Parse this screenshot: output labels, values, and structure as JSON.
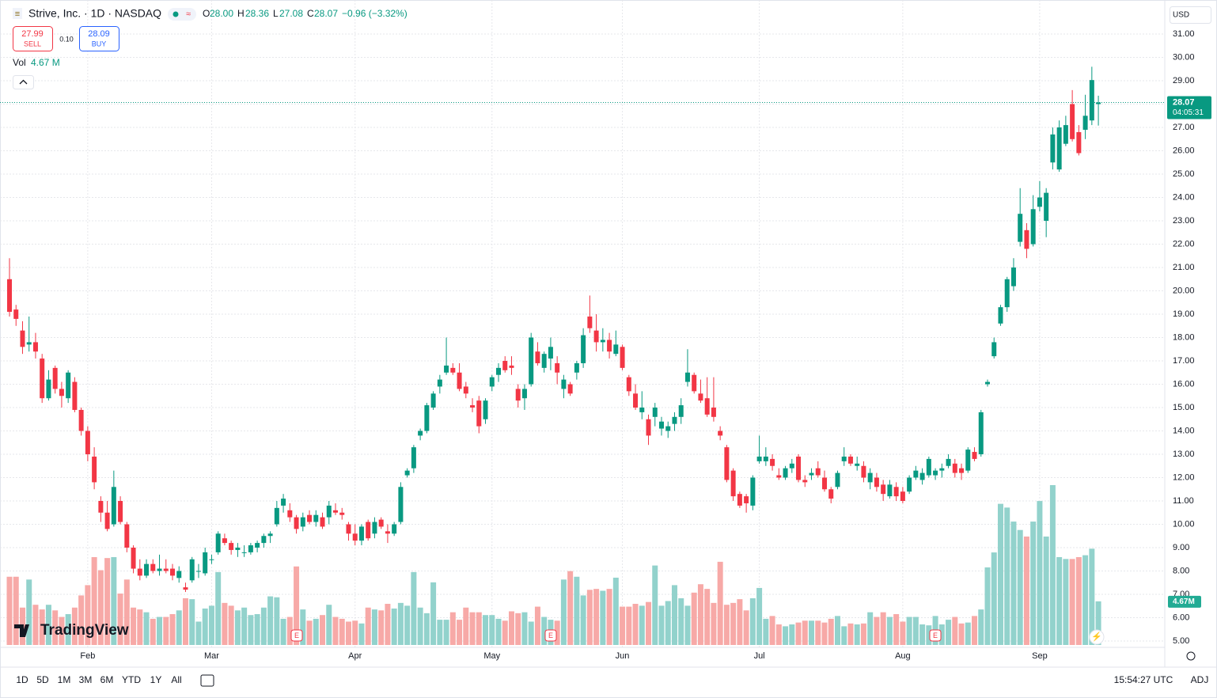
{
  "header": {
    "symbol": "Strive, Inc. · 1D · NASDAQ",
    "o_label": "O",
    "h_label": "H",
    "l_label": "L",
    "c_label": "C",
    "open": "28.00",
    "high": "28.36",
    "low": "27.08",
    "close": "28.07",
    "change": "−0.96 (−3.32%)",
    "sell_price": "27.99",
    "sell": "SELL",
    "spread": "0.10",
    "buy_price": "28.09",
    "buy": "BUY",
    "vol_label": "Vol",
    "vol_value": "4.67 M"
  },
  "chart_data": {
    "type": "candlestick",
    "currency": "USD",
    "countdown": "04:05:31",
    "volume_label": "4.67M",
    "earnings_label": "E",
    "categories": [
      null,
      null,
      null,
      null,
      null,
      null,
      null,
      null,
      null,
      null,
      null,
      null,
      "Feb",
      null,
      null,
      null,
      null,
      null,
      null,
      null,
      null,
      null,
      null,
      null,
      null,
      null,
      null,
      null,
      null,
      null,
      null,
      "Mar",
      null,
      null,
      null,
      null,
      null,
      null,
      null,
      null,
      null,
      null,
      null,
      null,
      null,
      null,
      null,
      null,
      null,
      null,
      null,
      null,
      null,
      "Apr",
      null,
      null,
      null,
      null,
      null,
      null,
      null,
      null,
      null,
      null,
      null,
      null,
      null,
      null,
      null,
      null,
      null,
      null,
      null,
      null,
      "May",
      null,
      null,
      null,
      null,
      null,
      null,
      null,
      null,
      null,
      null,
      null,
      null,
      null,
      null,
      null,
      null,
      null,
      null,
      null,
      "Jun",
      null,
      null,
      null,
      null,
      null,
      null,
      null,
      null,
      null,
      null,
      null,
      null,
      null,
      null,
      null,
      null,
      null,
      null,
      null,
      null,
      "Jul",
      null,
      null,
      null,
      null,
      null,
      null,
      null,
      null,
      null,
      null,
      null,
      null,
      null,
      null,
      null,
      null,
      null,
      null,
      null,
      null,
      null,
      "Aug",
      null,
      null,
      null,
      null,
      null,
      null,
      null,
      null,
      null,
      null,
      null,
      null,
      null,
      null,
      null,
      null,
      null,
      null,
      null,
      null,
      "Sep",
      null,
      null,
      null,
      null,
      null,
      null,
      null,
      null,
      null
    ],
    "open": [
      20.5,
      19.2,
      18.3,
      17.7,
      17.8,
      17.1,
      15.4,
      16.7,
      15.8,
      15.4,
      16.1,
      14.9,
      14.0,
      12.9,
      11.0,
      10.5,
      10.0,
      11.0,
      10.0,
      9.0,
      8.1,
      7.8,
      8.3,
      8.0,
      8.1,
      8.1,
      7.7,
      7.3,
      7.6,
      8.0,
      7.9,
      8.5,
      8.8,
      9.4,
      9.2,
      8.9,
      8.8,
      8.8,
      9.0,
      9.2,
      9.5,
      10.0,
      10.8,
      10.6,
      10.3,
      9.9,
      10.4,
      10.1,
      10.3,
      10.3,
      10.6,
      10.5,
      10.0,
      9.6,
      9.3,
      10.1,
      9.6,
      10.2,
      9.7,
      9.6,
      10.1,
      12.1,
      12.4,
      13.8,
      14.0,
      15.0,
      15.9,
      16.5,
      16.7,
      16.5,
      15.9,
      15.1,
      15.3,
      14.5,
      15.9,
      16.4,
      17.0,
      16.8,
      15.8,
      15.4,
      16.0,
      17.4,
      16.7,
      17.1,
      16.9,
      15.8,
      16.0,
      16.5,
      16.9,
      18.9,
      18.3,
      17.8,
      17.9,
      17.3,
      17.6,
      16.3,
      15.6,
      14.8,
      14.5,
      14.6,
      14.1,
      14.0,
      14.3,
      14.6,
      16.1,
      16.4,
      15.6,
      15.4,
      15.0,
      14.0,
      13.3,
      12.3,
      11.3,
      11.2,
      10.8,
      12.7,
      12.7,
      12.8,
      12.1,
      12.0,
      12.4,
      12.9,
      11.9,
      12.1,
      12.4,
      12.0,
      11.5,
      11.6,
      12.7,
      12.9,
      12.5,
      12.5,
      11.8,
      12.0,
      11.7,
      11.2,
      11.6,
      11.4,
      11.4,
      12.0,
      11.9,
      12.1,
      12.1,
      12.3,
      12.5,
      12.6,
      12.4,
      12.3,
      13.1,
      13.0,
      16.0,
      17.2,
      18.6,
      19.3,
      20.2,
      22.1,
      22.6,
      22.0,
      23.6,
      23.0,
      25.5,
      25.2,
      26.3,
      28.0,
      26.8,
      26.9,
      27.3,
      28.0
    ],
    "high": [
      21.4,
      19.4,
      18.7,
      18.9,
      18.2,
      17.3,
      16.6,
      16.8,
      16.1,
      16.6,
      16.3,
      15.0,
      14.2,
      13.3,
      11.2,
      11.0,
      12.3,
      11.2,
      10.1,
      9.1,
      8.5,
      8.5,
      8.5,
      8.7,
      8.5,
      8.3,
      8.2,
      7.5,
      8.6,
      8.3,
      9.0,
      8.7,
      9.7,
      9.6,
      9.3,
      9.2,
      9.1,
      9.2,
      9.3,
      9.6,
      9.7,
      11.0,
      11.3,
      10.9,
      10.4,
      10.5,
      10.6,
      10.6,
      10.5,
      11.0,
      10.9,
      10.7,
      10.1,
      10.0,
      10.0,
      10.2,
      10.3,
      10.3,
      10.0,
      10.1,
      11.8,
      12.4,
      13.4,
      14.1,
      15.2,
      15.7,
      16.4,
      18.0,
      16.9,
      16.9,
      16.1,
      15.4,
      15.5,
      15.4,
      16.4,
      16.9,
      17.2,
      17.2,
      16.0,
      16.0,
      18.2,
      17.8,
      17.4,
      18.0,
      17.2,
      16.4,
      16.1,
      17.0,
      18.4,
      19.8,
      19.0,
      18.4,
      18.2,
      18.3,
      17.7,
      16.4,
      16.0,
      15.7,
      14.7,
      15.2,
      14.6,
      14.4,
      14.8,
      15.4,
      17.5,
      16.5,
      16.2,
      16.3,
      16.3,
      14.2,
      13.4,
      12.4,
      11.4,
      11.3,
      12.1,
      13.8,
      13.3,
      13.0,
      12.4,
      12.5,
      12.8,
      13.0,
      12.1,
      12.4,
      12.7,
      12.3,
      11.6,
      12.3,
      13.3,
      13.0,
      12.9,
      12.7,
      12.4,
      12.2,
      11.9,
      11.9,
      11.8,
      11.6,
      12.1,
      12.5,
      12.4,
      12.9,
      12.4,
      12.6,
      13.0,
      12.8,
      12.6,
      13.3,
      13.3,
      14.9,
      16.2,
      18.0,
      19.4,
      20.6,
      21.4,
      24.4,
      22.9,
      24.1,
      24.7,
      24.4,
      27.0,
      27.3,
      27.5,
      28.6,
      27.1,
      28.4,
      29.6,
      28.36
    ],
    "low": [
      18.9,
      18.5,
      17.3,
      17.4,
      17.1,
      15.2,
      15.3,
      15.6,
      15.0,
      15.2,
      14.8,
      13.8,
      12.7,
      11.5,
      10.1,
      9.7,
      9.9,
      10.0,
      8.8,
      7.9,
      7.6,
      7.7,
      7.9,
      7.8,
      7.9,
      7.6,
      7.5,
      7.1,
      7.5,
      7.7,
      7.8,
      8.3,
      8.7,
      9.1,
      8.7,
      8.6,
      8.6,
      8.7,
      8.8,
      9.0,
      9.2,
      9.9,
      10.5,
      10.1,
      9.6,
      9.7,
      10.0,
      9.9,
      9.8,
      10.0,
      10.4,
      10.2,
      9.3,
      9.1,
      9.1,
      9.3,
      9.4,
      9.8,
      9.2,
      9.5,
      10.0,
      12.0,
      12.2,
      13.6,
      13.9,
      14.9,
      15.6,
      16.4,
      16.4,
      15.7,
      15.4,
      14.8,
      13.9,
      14.3,
      15.7,
      16.1,
      16.5,
      16.4,
      15.0,
      14.9,
      15.9,
      16.8,
      16.5,
      16.6,
      16.0,
      15.4,
      15.5,
      16.2,
      16.7,
      18.2,
      17.4,
      17.4,
      17.1,
      17.2,
      16.6,
      15.5,
      14.9,
      14.5,
      13.4,
      14.2,
      13.8,
      13.7,
      14.0,
      14.3,
      15.9,
      15.6,
      15.2,
      14.6,
      14.4,
      13.6,
      11.8,
      11.0,
      10.7,
      10.5,
      10.6,
      12.6,
      12.5,
      12.3,
      11.9,
      11.9,
      12.2,
      11.8,
      11.6,
      11.9,
      12.0,
      11.4,
      10.9,
      11.5,
      12.5,
      12.5,
      12.3,
      11.8,
      11.5,
      11.4,
      11.0,
      11.1,
      11.0,
      10.9,
      11.3,
      11.9,
      11.7,
      12.0,
      11.9,
      12.0,
      12.4,
      12.0,
      11.9,
      12.2,
      12.7,
      12.9,
      15.9,
      17.1,
      18.5,
      19.1,
      20.0,
      21.9,
      21.4,
      21.9,
      23.4,
      22.3,
      25.2,
      25.1,
      26.2,
      26.4,
      25.8,
      26.5,
      27.1,
      27.08
    ],
    "close": [
      19.1,
      18.8,
      17.6,
      17.8,
      17.4,
      15.4,
      16.2,
      15.8,
      15.5,
      16.5,
      14.9,
      14.0,
      13.0,
      11.8,
      10.5,
      9.8,
      11.6,
      10.1,
      9.0,
      8.1,
      7.8,
      8.3,
      8.0,
      8.1,
      8.0,
      7.8,
      8.0,
      7.2,
      8.5,
      8.0,
      8.8,
      8.5,
      9.6,
      9.2,
      8.9,
      9.0,
      8.8,
      9.1,
      9.2,
      9.5,
      9.6,
      10.7,
      11.1,
      10.3,
      9.8,
      10.3,
      10.1,
      10.4,
      9.9,
      10.8,
      10.5,
      10.4,
      9.6,
      9.3,
      9.9,
      9.4,
      10.1,
      9.9,
      9.6,
      10.0,
      11.6,
      12.3,
      13.3,
      14.0,
      15.1,
      15.6,
      16.2,
      16.8,
      16.5,
      15.8,
      15.6,
      15.0,
      14.2,
      15.3,
      16.3,
      16.7,
      16.6,
      16.7,
      15.3,
      15.8,
      18.0,
      16.9,
      17.3,
      17.6,
      16.5,
      16.2,
      15.6,
      16.9,
      18.1,
      18.4,
      17.8,
      17.9,
      17.4,
      17.7,
      16.7,
      15.7,
      15.0,
      15.0,
      13.8,
      15.0,
      14.4,
      14.2,
      14.6,
      15.1,
      16.5,
      15.7,
      15.3,
      14.7,
      14.6,
      13.8,
      11.9,
      11.2,
      10.8,
      10.9,
      12.0,
      12.9,
      12.9,
      12.5,
      12.0,
      12.4,
      12.6,
      11.9,
      11.8,
      12.2,
      12.1,
      11.5,
      11.1,
      12.2,
      12.9,
      12.6,
      12.6,
      12.0,
      12.2,
      11.6,
      11.3,
      11.7,
      11.2,
      11.0,
      12.0,
      12.3,
      12.2,
      12.8,
      12.3,
      12.4,
      12.8,
      12.2,
      12.2,
      13.2,
      12.8,
      14.8,
      16.1,
      17.8,
      19.3,
      20.5,
      21.0,
      23.3,
      21.8,
      23.5,
      24.0,
      24.2,
      26.7,
      27.0,
      27.1,
      26.5,
      25.9,
      27.5,
      29.03,
      28.07
    ],
    "volume": [
      7.3,
      7.3,
      4.0,
      7.0,
      4.3,
      3.8,
      4.3,
      3.7,
      3.0,
      3.3,
      4.0,
      5.3,
      6.4,
      9.4,
      8.0,
      9.3,
      9.4,
      5.5,
      7.0,
      4.0,
      3.8,
      3.5,
      2.8,
      3.0,
      3.0,
      3.3,
      3.7,
      5.0,
      4.9,
      2.5,
      3.9,
      4.2,
      7.8,
      4.5,
      4.2,
      3.7,
      4.0,
      3.2,
      3.3,
      4.0,
      5.2,
      5.1,
      2.8,
      3.0,
      8.4,
      3.8,
      2.6,
      2.8,
      3.2,
      4.3,
      3.0,
      2.8,
      2.5,
      2.6,
      2.3,
      4.0,
      3.8,
      3.7,
      4.4,
      3.9,
      4.5,
      4.2,
      7.8,
      4.0,
      3.4,
      6.7,
      2.7,
      2.7,
      3.5,
      2.7,
      4.0,
      3.5,
      3.5,
      3.2,
      3.2,
      2.8,
      2.6,
      3.6,
      3.4,
      3.5,
      2.5,
      4.1,
      3.0,
      2.7,
      2.6,
      7.0,
      7.9,
      7.3,
      5.3,
      5.9,
      6.0,
      5.8,
      6.0,
      7.2,
      4.1,
      4.1,
      4.4,
      4.2,
      4.6,
      8.5,
      4.2,
      4.7,
      6.4,
      5.0,
      4.2,
      5.6,
      6.5,
      6.0,
      4.5,
      8.9,
      4.3,
      4.5,
      4.9,
      3.7,
      5.0,
      6.1,
      2.8,
      3.1,
      2.2,
      2.0,
      2.2,
      2.4,
      2.6,
      2.6,
      2.6,
      2.4,
      2.8,
      3.1,
      2.0,
      2.3,
      2.2,
      2.3,
      3.5,
      3.0,
      3.5,
      3.0,
      3.3,
      2.5,
      3.0,
      3.0,
      2.2,
      2.1,
      3.1,
      2.2,
      2.7,
      3.0,
      2.3,
      2.4,
      3.1,
      3.8,
      8.3,
      9.9,
      15.1,
      14.7,
      13.2,
      12.3,
      11.6,
      13.2,
      15.4,
      11.6,
      17.1,
      9.4,
      9.2,
      9.2,
      9.4,
      9.6,
      10.3,
      4.67
    ],
    "ylim": [
      4.83,
      32.29
    ],
    "yticks": [
      {
        "value": 5,
        "label": "5.00"
      },
      {
        "value": 6,
        "label": "6.00"
      },
      {
        "value": 7,
        "label": "7.00"
      },
      {
        "value": 8,
        "label": "8.00"
      },
      {
        "value": 9,
        "label": "9.00"
      },
      {
        "value": 10,
        "label": "10.00"
      },
      {
        "value": 11,
        "label": "11.00"
      },
      {
        "value": 12,
        "label": "12.00"
      },
      {
        "value": 13,
        "label": "13.00"
      },
      {
        "value": 14,
        "label": "14.00"
      },
      {
        "value": 15,
        "label": "15.00"
      },
      {
        "value": 16,
        "label": "16.00"
      },
      {
        "value": 17,
        "label": "17.00"
      },
      {
        "value": 18,
        "label": "18.00"
      },
      {
        "value": 19,
        "label": "19.00"
      },
      {
        "value": 20,
        "label": "20.00"
      },
      {
        "value": 21,
        "label": "21.00"
      },
      {
        "value": 22,
        "label": "22.00"
      },
      {
        "value": 23,
        "label": "23.00"
      },
      {
        "value": 24,
        "label": "24.00"
      },
      {
        "value": 25,
        "label": "25.00"
      },
      {
        "value": 26,
        "label": "26.00"
      },
      {
        "value": 27,
        "label": "27.00"
      },
      {
        "value": 28,
        "label": "28.00"
      },
      {
        "value": 29,
        "label": "29.00"
      },
      {
        "value": 30,
        "label": "30.00"
      },
      {
        "value": 31,
        "label": "31.00"
      }
    ],
    "grid": true,
    "up_color": "#089981",
    "down_color": "#f23645",
    "volume_up_color": "#92d2cc",
    "volume_down_color": "#f7a9a7"
  },
  "toolbar": {
    "ranges": [
      "1D",
      "5D",
      "1M",
      "3M",
      "6M",
      "YTD",
      "1Y",
      "All"
    ],
    "time": "15:54:27 UTC",
    "adj": "ADJ"
  },
  "logo": "TradingView"
}
